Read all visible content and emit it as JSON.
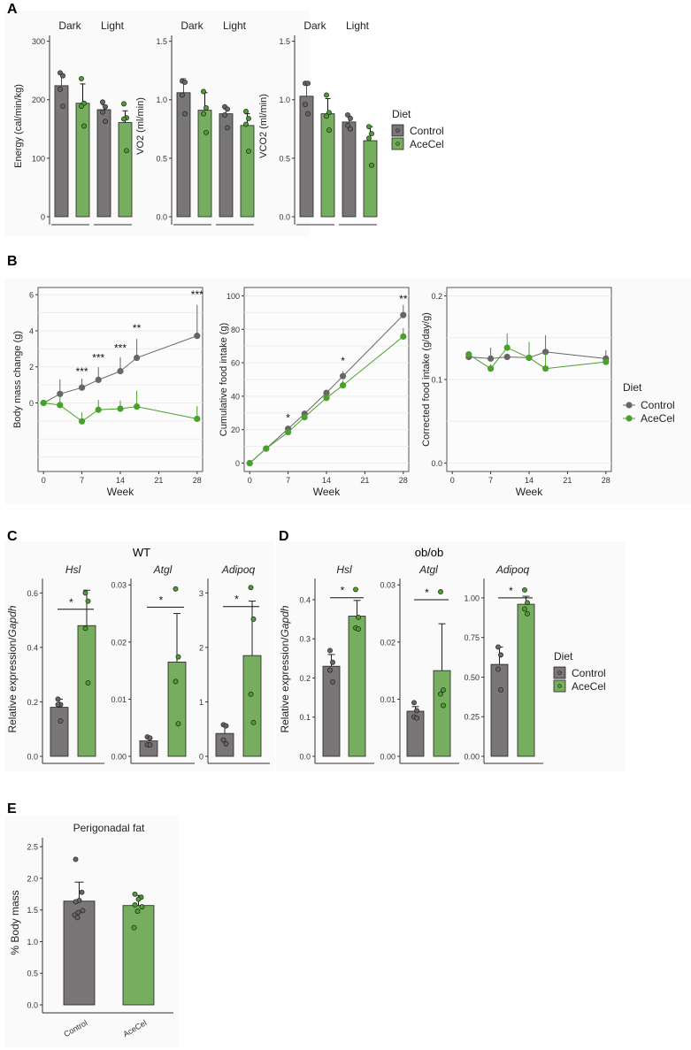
{
  "colors": {
    "control_bar": "#7a7577",
    "acecel_bar": "#77ad5e",
    "control_point": "#666666",
    "acecel_point": "#4aa02c",
    "control_line": "#666666",
    "acecel_line": "#4aa02c"
  },
  "panels": {
    "A": {
      "letter": "A"
    },
    "B": {
      "letter": "B"
    },
    "C": {
      "letter": "C",
      "title": "WT"
    },
    "D": {
      "letter": "D",
      "title": "ob/ob"
    },
    "E": {
      "letter": "E"
    }
  },
  "legend": {
    "title": "Diet",
    "items": [
      "Control",
      "AceCel"
    ]
  },
  "chart_data": [
    {
      "id": "A1",
      "panel": "A",
      "type": "bar",
      "ylabel": "Energy (cal/min/kg)",
      "ylim": [
        0,
        310
      ],
      "yticks": [
        0,
        100,
        200,
        300
      ],
      "ytick_labels": [
        "0",
        "100",
        "200",
        "300"
      ],
      "facets": [
        "Dark",
        "Light"
      ],
      "series": [
        {
          "name": "Control",
          "values": [
            224,
            183
          ],
          "errors": [
            20,
            8
          ],
          "points": [
            [
              246,
              241,
              218,
              189
            ],
            [
              196,
              188,
              179,
              163
            ]
          ]
        },
        {
          "name": "AceCel",
          "values": [
            194,
            161
          ],
          "errors": [
            33,
            20
          ],
          "points": [
            [
              236,
              194,
              189,
              155
            ],
            [
              193,
              169,
              167,
              113
            ]
          ]
        }
      ]
    },
    {
      "id": "A2",
      "panel": "A",
      "type": "bar",
      "ylabel": "VO2 (ml/min)",
      "ylim": [
        0,
        1.55
      ],
      "yticks": [
        0,
        0.5,
        1.0,
        1.5
      ],
      "ytick_labels": [
        "0.0",
        "0.5",
        "1.0",
        "1.5"
      ],
      "facets": [
        "Dark",
        "Light"
      ],
      "series": [
        {
          "name": "Control",
          "values": [
            1.06,
            0.88
          ],
          "errors": [
            0.12,
            0.04
          ],
          "points": [
            [
              1.16,
              1.15,
              1.04,
              0.88
            ],
            [
              0.94,
              0.92,
              0.87,
              0.76
            ]
          ]
        },
        {
          "name": "AceCel",
          "values": [
            0.91,
            0.78
          ],
          "errors": [
            0.15,
            0.1
          ],
          "points": [
            [
              1.07,
              0.93,
              0.88,
              0.72
            ],
            [
              0.9,
              0.84,
              0.79,
              0.56
            ]
          ]
        }
      ]
    },
    {
      "id": "A3",
      "panel": "A",
      "type": "bar",
      "ylabel": "VCO2 (ml/min)",
      "ylim": [
        0,
        1.55
      ],
      "yticks": [
        0,
        0.5,
        1.0,
        1.5
      ],
      "ytick_labels": [
        "0.0",
        "0.5",
        "1.0",
        "1.5"
      ],
      "facets": [
        "Dark",
        "Light"
      ],
      "series": [
        {
          "name": "Control",
          "values": [
            1.03,
            0.81
          ],
          "errors": [
            0.12,
            0.05
          ],
          "points": [
            [
              1.14,
              1.14,
              0.96,
              0.88
            ],
            [
              0.87,
              0.84,
              0.78,
              0.75
            ]
          ]
        },
        {
          "name": "AceCel",
          "values": [
            0.88,
            0.65
          ],
          "errors": [
            0.13,
            0.12
          ],
          "points": [
            [
              1.04,
              0.89,
              0.86,
              0.74
            ],
            [
              0.77,
              0.71,
              0.67,
              0.44
            ]
          ]
        }
      ]
    },
    {
      "id": "B1",
      "panel": "B",
      "type": "line",
      "xlabel": "Week",
      "ylabel": "Body mass change (g)",
      "xlim": [
        -1,
        29
      ],
      "xticks": [
        0,
        7,
        14,
        21,
        28
      ],
      "ylim": [
        -3.8,
        6.4
      ],
      "yticks": [
        0,
        2,
        4,
        6
      ],
      "ytick_labels": [
        "0",
        "2",
        "4",
        "6"
      ],
      "series": [
        {
          "name": "Control",
          "x": [
            0,
            3,
            7,
            10,
            14,
            17,
            28
          ],
          "y": [
            0,
            0.5,
            0.85,
            1.28,
            1.76,
            2.5,
            3.72
          ],
          "err": [
            0,
            0.8,
            0.5,
            0.7,
            0.78,
            1.05,
            1.72
          ]
        },
        {
          "name": "AceCel",
          "x": [
            0,
            3,
            7,
            10,
            14,
            17,
            28
          ],
          "y": [
            0,
            -0.12,
            -1.02,
            -0.38,
            -0.32,
            -0.2,
            -0.88
          ],
          "err": [
            0,
            0.45,
            0.5,
            0.55,
            0.45,
            0.88,
            0.7
          ]
        }
      ],
      "annotations": [
        {
          "x": 7,
          "y": 1.55,
          "text": "***"
        },
        {
          "x": 10,
          "y": 2.3,
          "text": "***"
        },
        {
          "x": 14,
          "y": 2.85,
          "text": "***"
        },
        {
          "x": 17,
          "y": 3.95,
          "text": "**"
        },
        {
          "x": 28,
          "y": 5.8,
          "text": "***"
        }
      ]
    },
    {
      "id": "B2",
      "panel": "B",
      "type": "line",
      "xlabel": "Week",
      "ylabel": "Cumulative food intake (g)",
      "xlim": [
        -1,
        29
      ],
      "xticks": [
        0,
        7,
        14,
        21,
        28
      ],
      "ylim": [
        -5,
        105
      ],
      "yticks": [
        0,
        20,
        40,
        60,
        80,
        100
      ],
      "ytick_labels": [
        "0",
        "20",
        "40",
        "60",
        "80",
        "100"
      ],
      "series": [
        {
          "name": "Control",
          "x": [
            0,
            3,
            7,
            10,
            14,
            17,
            28
          ],
          "y": [
            0,
            8.7,
            20.5,
            29.5,
            42,
            52,
            88.5
          ],
          "err": [
            0,
            0.4,
            1,
            1,
            1.5,
            3,
            6
          ]
        },
        {
          "name": "AceCel",
          "x": [
            0,
            3,
            7,
            10,
            14,
            17,
            28
          ],
          "y": [
            0,
            8.7,
            18.5,
            27.5,
            39,
            46.5,
            75.7
          ],
          "err": [
            0,
            0.4,
            0.8,
            1,
            1.2,
            3,
            5
          ]
        }
      ],
      "annotations": [
        {
          "x": 7,
          "y": 25,
          "text": "*"
        },
        {
          "x": 17,
          "y": 59,
          "text": "*"
        },
        {
          "x": 28,
          "y": 96,
          "text": "**"
        }
      ]
    },
    {
      "id": "B3",
      "panel": "B",
      "type": "line",
      "xlabel": "Week",
      "ylabel": "Corrected food intake (g/day/g)",
      "xlim": [
        -1,
        29
      ],
      "xticks": [
        0,
        7,
        14,
        21,
        28
      ],
      "ylim": [
        -0.01,
        0.21
      ],
      "yticks": [
        0,
        0.1,
        0.2
      ],
      "ytick_labels": [
        "0.0",
        "0.1",
        "0.2"
      ],
      "series": [
        {
          "name": "Control",
          "x": [
            3,
            7,
            10,
            14,
            17,
            28
          ],
          "y": [
            0.127,
            0.125,
            0.127,
            0.126,
            0.133,
            0.125
          ],
          "err": [
            0.003,
            0.013,
            0.004,
            0.005,
            0.02,
            0.01
          ]
        },
        {
          "name": "AceCel",
          "x": [
            3,
            7,
            10,
            14,
            17,
            28
          ],
          "y": [
            0.13,
            0.113,
            0.138,
            0.126,
            0.113,
            0.121
          ],
          "err": [
            0.003,
            0.005,
            0.017,
            0.019,
            0.02,
            0.003
          ]
        }
      ]
    },
    {
      "id": "C1",
      "panel": "C",
      "type": "bar",
      "facet_title": "Hsl",
      "ylabel": "Relative expression/Gapdh",
      "ylim": [
        0,
        0.64
      ],
      "yticks": [
        0,
        0.2,
        0.4,
        0.6
      ],
      "ytick_labels": [
        "0.0",
        "0.2",
        "0.4",
        "0.6"
      ],
      "series": [
        {
          "name": "Control",
          "value": 0.18,
          "error": 0.03,
          "points": [
            0.21,
            0.19,
            0.19,
            0.13
          ]
        },
        {
          "name": "AceCel",
          "value": 0.48,
          "error": 0.13,
          "points": [
            0.6,
            0.57,
            0.47,
            0.27
          ]
        }
      ],
      "significance": {
        "text": "*",
        "y": 0.54
      }
    },
    {
      "id": "C2",
      "panel": "C",
      "type": "bar",
      "facet_title": "Atgl",
      "ylim": [
        0,
        0.0305
      ],
      "yticks": [
        0,
        0.01,
        0.02,
        0.03
      ],
      "ytick_labels": [
        "0.00",
        "0.01",
        "0.02",
        "0.03"
      ],
      "series": [
        {
          "name": "Control",
          "value": 0.0027,
          "error": 0.0006,
          "points": [
            0.0034,
            0.0032,
            0.002,
            0.002
          ]
        },
        {
          "name": "AceCel",
          "value": 0.0165,
          "error": 0.0085,
          "points": [
            0.0293,
            0.0174,
            0.0131,
            0.0057
          ]
        }
      ],
      "significance": {
        "text": "*",
        "y": 0.0261
      }
    },
    {
      "id": "C3",
      "panel": "C",
      "type": "bar",
      "facet_title": "Adipoq",
      "ylim": [
        0,
        3.2
      ],
      "yticks": [
        0,
        1,
        2,
        3
      ],
      "ytick_labels": [
        "0",
        "1",
        "2",
        "3"
      ],
      "series": [
        {
          "name": "Control",
          "value": 0.42,
          "error": 0.15,
          "points": [
            0.58,
            0.56,
            0.3,
            0.23
          ]
        },
        {
          "name": "AceCel",
          "value": 1.85,
          "error": 1.0,
          "points": [
            3.1,
            2.52,
            1.14,
            0.62
          ]
        }
      ],
      "significance": {
        "text": "*",
        "y": 2.75
      }
    },
    {
      "id": "D1",
      "panel": "D",
      "type": "bar",
      "facet_title": "Hsl",
      "ylabel": "Relative expression/Gapdh",
      "ylim": [
        0,
        0.445
      ],
      "yticks": [
        0,
        0.1,
        0.2,
        0.3,
        0.4
      ],
      "ytick_labels": [
        "0.0",
        "0.1",
        "0.2",
        "0.3",
        "0.4"
      ],
      "series": [
        {
          "name": "Control",
          "value": 0.23,
          "error": 0.03,
          "points": [
            0.27,
            0.24,
            0.22,
            0.19
          ]
        },
        {
          "name": "AceCel",
          "value": 0.358,
          "error": 0.04,
          "points": [
            0.426,
            0.355,
            0.328,
            0.325
          ]
        }
      ],
      "significance": {
        "text": "*",
        "y": 0.405
      }
    },
    {
      "id": "D2",
      "panel": "D",
      "type": "bar",
      "facet_title": "Atgl",
      "ylim": [
        0,
        0.0305
      ],
      "yticks": [
        0,
        0.01,
        0.02,
        0.03
      ],
      "ytick_labels": [
        "0.00",
        "0.01",
        "0.02",
        "0.03"
      ],
      "series": [
        {
          "name": "Control",
          "value": 0.0079,
          "error": 0.0008,
          "points": [
            0.0094,
            0.008,
            0.0069,
            0.0067
          ]
        },
        {
          "name": "AceCel",
          "value": 0.015,
          "error": 0.0082,
          "points": [
            0.0288,
            0.0116,
            0.0109,
            0.0089
          ]
        }
      ],
      "significance": {
        "text": "*",
        "y": 0.0274
      }
    },
    {
      "id": "D3",
      "panel": "D",
      "type": "bar",
      "facet_title": "Adipoq",
      "ylim": [
        0,
        1.1
      ],
      "yticks": [
        0,
        0.25,
        0.5,
        0.75,
        1.0
      ],
      "ytick_labels": [
        "0.00",
        "0.25",
        "0.50",
        "0.75",
        "1.00"
      ],
      "series": [
        {
          "name": "Control",
          "value": 0.58,
          "error": 0.11,
          "points": [
            0.69,
            0.64,
            0.55,
            0.42
          ]
        },
        {
          "name": "AceCel",
          "value": 0.96,
          "error": 0.05,
          "points": [
            1.05,
            0.97,
            0.93,
            0.9
          ]
        }
      ],
      "significance": {
        "text": "*",
        "y": 1.0
      }
    },
    {
      "id": "E1",
      "panel": "E",
      "type": "bar",
      "title": "Perigonadal fat",
      "ylabel": "% Body mass",
      "ylim": [
        0,
        2.6
      ],
      "yticks": [
        0,
        0.5,
        1.0,
        1.5,
        2.0,
        2.5
      ],
      "ytick_labels": [
        "0.0",
        "0.5",
        "1.0",
        "1.5",
        "2.0",
        "2.5"
      ],
      "categories": [
        "Control",
        "AceCel"
      ],
      "series": [
        {
          "name": "Control",
          "value": 1.64,
          "error": 0.3,
          "points": [
            2.3,
            1.78,
            1.65,
            1.63,
            1.49,
            1.46,
            1.42,
            1.38
          ]
        },
        {
          "name": "AceCel",
          "value": 1.57,
          "error": 0.16,
          "points": [
            1.75,
            1.7,
            1.67,
            1.58,
            1.55,
            1.48,
            1.22
          ]
        }
      ]
    }
  ]
}
